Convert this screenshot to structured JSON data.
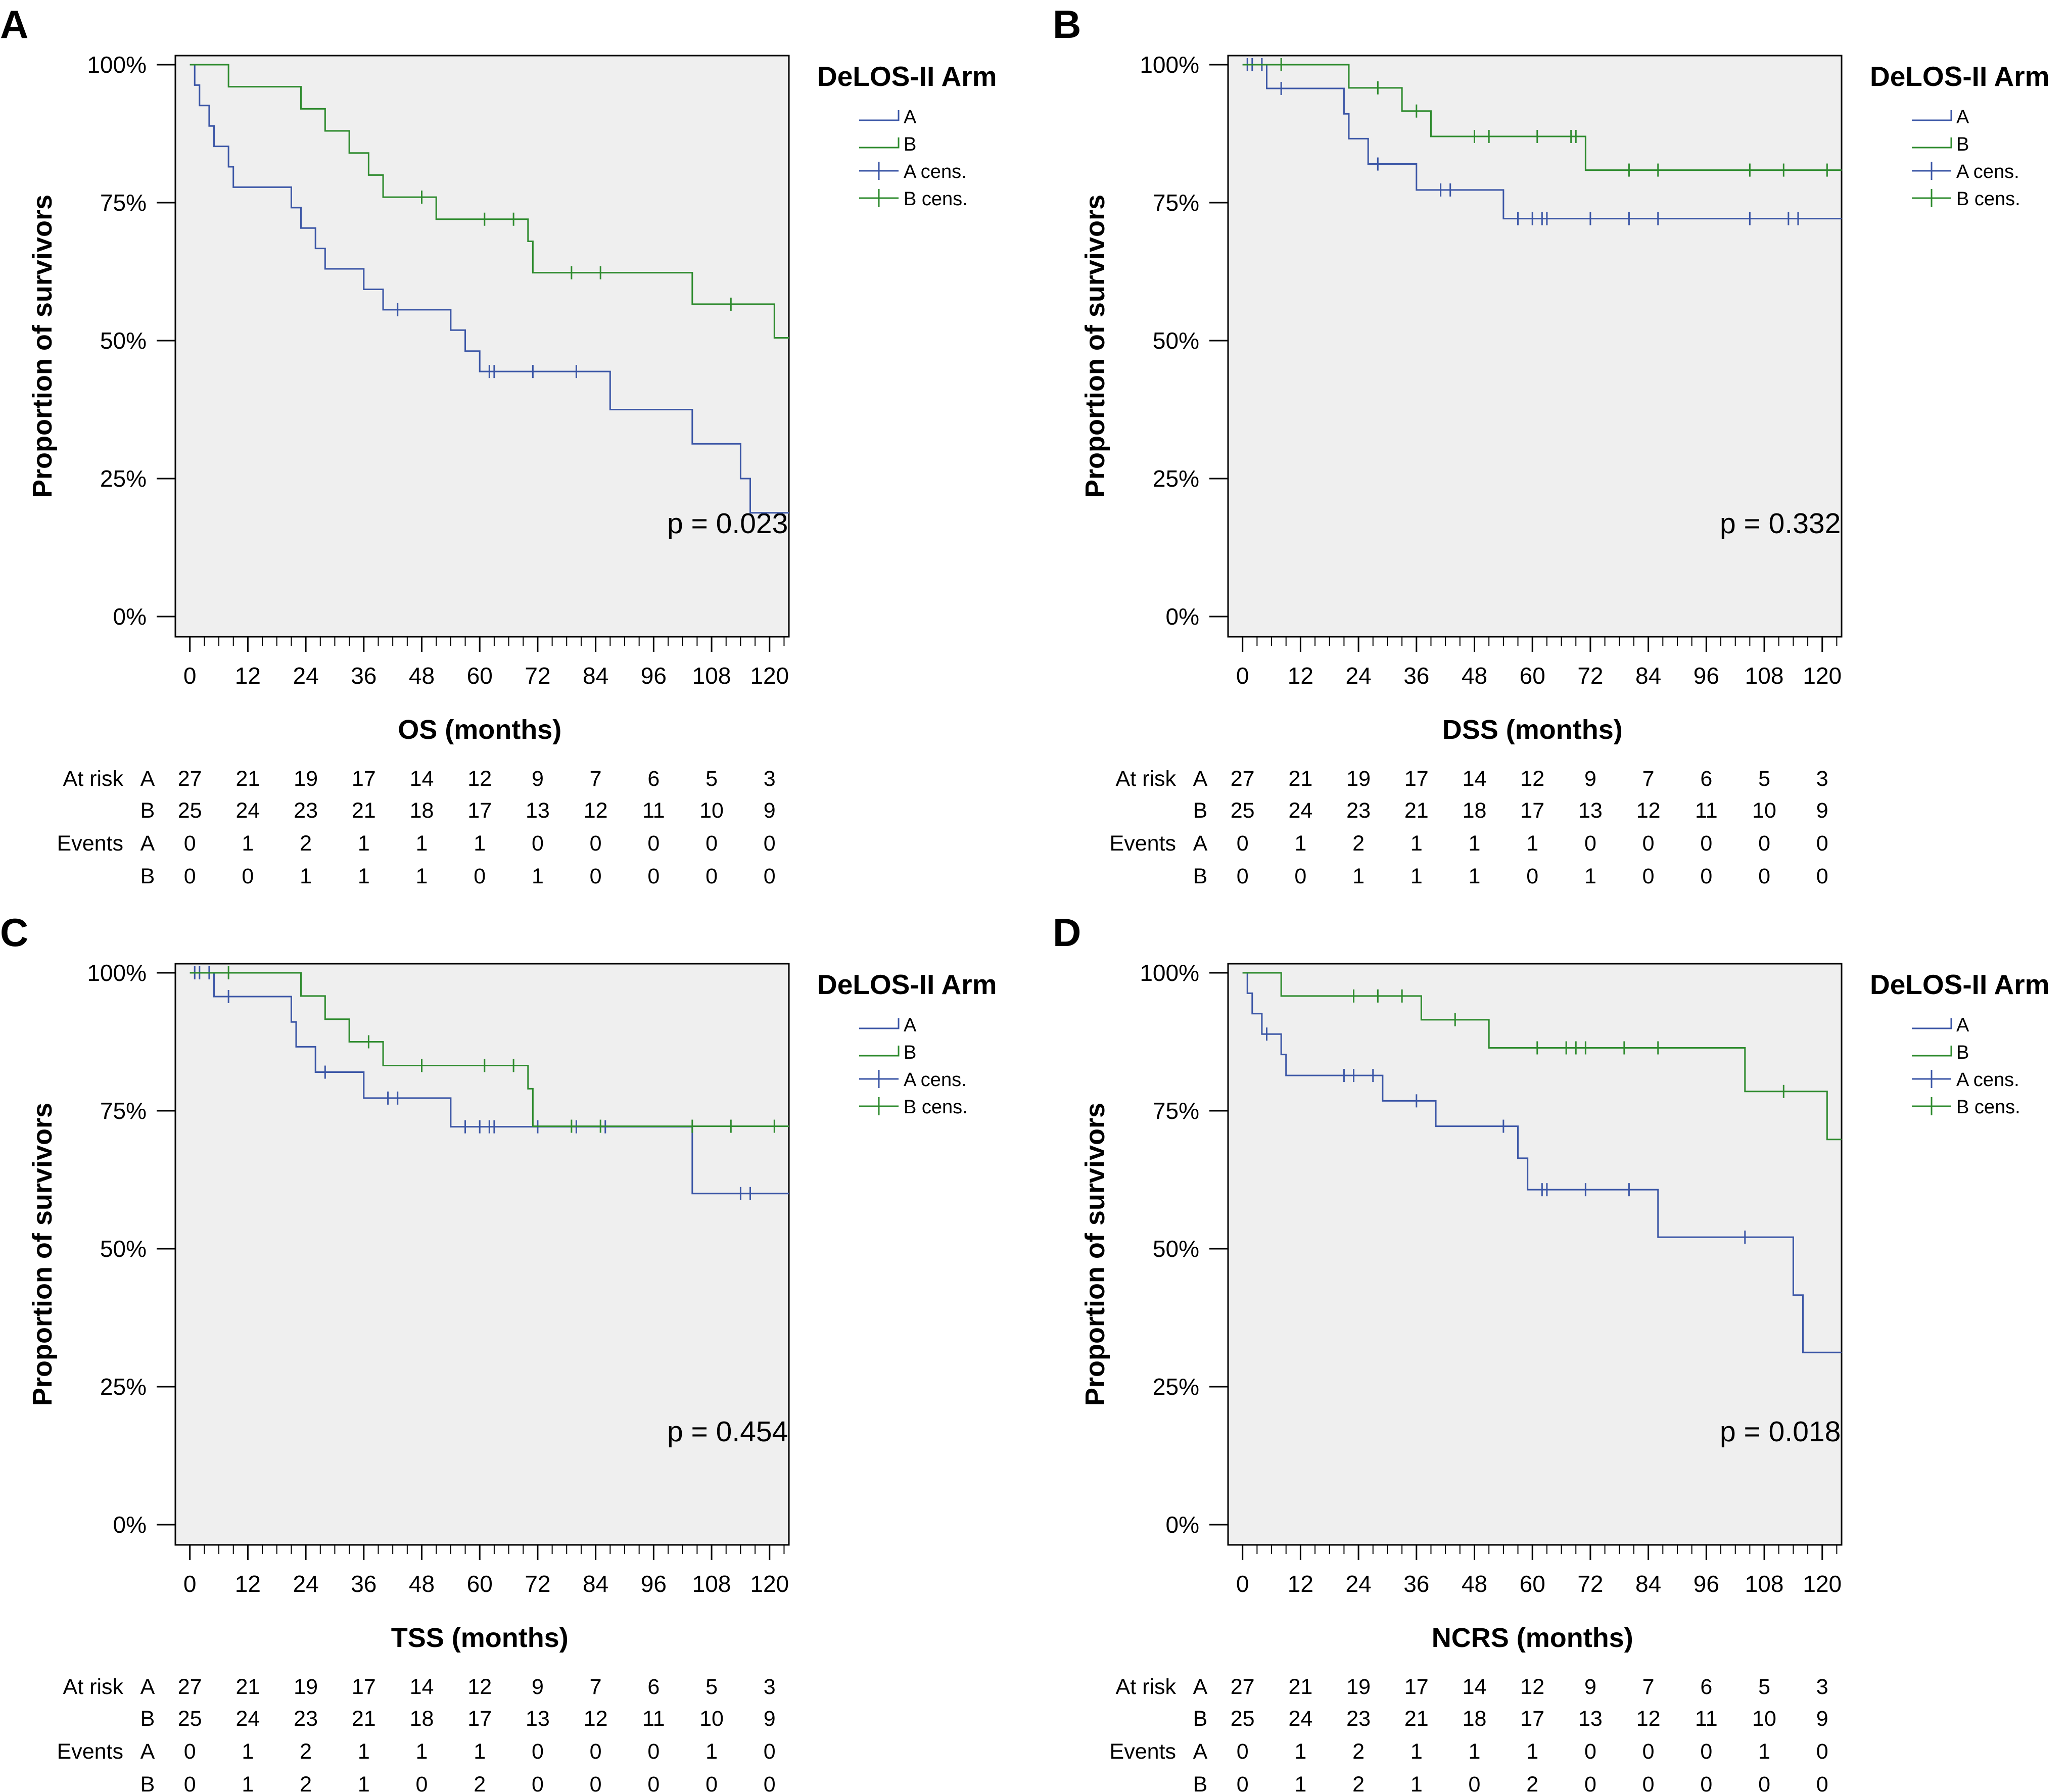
{
  "figure": {
    "legend_title": "DeLOS-II Arm",
    "legend_items": [
      "A",
      "B",
      "A cens.",
      "B cens."
    ],
    "ylabel": "Proportion of survivors",
    "y_ticks": [
      "0%",
      "25%",
      "50%",
      "75%",
      "100%"
    ],
    "x_ticks": [
      "0",
      "12",
      "24",
      "36",
      "48",
      "60",
      "72",
      "84",
      "96",
      "108",
      "120"
    ],
    "colors": {
      "A": "#3b56a6",
      "B": "#2e8b2e",
      "plot_bg": "#efefef"
    }
  },
  "chart_data": [
    {
      "panel": "A",
      "type": "line",
      "xlabel": "OS (months)",
      "ylabel": "Proportion of survivors",
      "xlim": [
        -3,
        124
      ],
      "ylim": [
        0,
        100
      ],
      "p_value": "p = 0.023",
      "series": [
        {
          "name": "A",
          "steps": [
            [
              0,
              100
            ],
            [
              1,
              96.3
            ],
            [
              2,
              92.6
            ],
            [
              4,
              88.9
            ],
            [
              5,
              85.2
            ],
            [
              8,
              81.5
            ],
            [
              9,
              77.8
            ],
            [
              21,
              74.1
            ],
            [
              23,
              70.4
            ],
            [
              26,
              66.7
            ],
            [
              28,
              63
            ],
            [
              36,
              59.3
            ],
            [
              40,
              55.6
            ],
            [
              54,
              51.9
            ],
            [
              57,
              48.1
            ],
            [
              60,
              44.4
            ],
            [
              87,
              37.5
            ],
            [
              104,
              31.3
            ],
            [
              114,
              25
            ],
            [
              116,
              18.8
            ],
            [
              124,
              18.8
            ]
          ],
          "censored": [
            [
              43,
              55.6
            ],
            [
              62,
              44.4
            ],
            [
              63,
              44.4
            ],
            [
              71,
              44.4
            ],
            [
              80,
              44.4
            ]
          ]
        },
        {
          "name": "B",
          "steps": [
            [
              0,
              100
            ],
            [
              8,
              96
            ],
            [
              23,
              92
            ],
            [
              28,
              88
            ],
            [
              33,
              84
            ],
            [
              37,
              80
            ],
            [
              40,
              76
            ],
            [
              51,
              72
            ],
            [
              70,
              68
            ],
            [
              71,
              62.3
            ],
            [
              104,
              56.6
            ],
            [
              121,
              50.5
            ],
            [
              124,
              50.5
            ]
          ],
          "censored": [
            [
              48,
              76
            ],
            [
              61,
              72
            ],
            [
              67,
              72
            ],
            [
              79,
              62.3
            ],
            [
              85,
              62.3
            ],
            [
              112,
              56.6
            ]
          ]
        }
      ],
      "risk_table": {
        "at_risk": {
          "A": [
            "27",
            "21",
            "19",
            "17",
            "14",
            "12",
            "9",
            "7",
            "6",
            "5",
            "3"
          ],
          "B": [
            "25",
            "24",
            "23",
            "21",
            "18",
            "17",
            "13",
            "12",
            "11",
            "10",
            "9"
          ]
        },
        "events": {
          "A": [
            "0",
            "1",
            "2",
            "1",
            "1",
            "1",
            "0",
            "0",
            "0",
            "0",
            "0"
          ],
          "B": [
            "0",
            "0",
            "1",
            "1",
            "1",
            "0",
            "1",
            "0",
            "0",
            "0",
            "0"
          ]
        }
      }
    },
    {
      "panel": "B",
      "type": "line",
      "xlabel": "DSS (months)",
      "ylabel": "Proportion of survivors",
      "xlim": [
        -3,
        124
      ],
      "ylim": [
        0,
        100
      ],
      "p_value": "p = 0.332",
      "series": [
        {
          "name": "A",
          "steps": [
            [
              0,
              100
            ],
            [
              5,
              95.7
            ],
            [
              21,
              91.1
            ],
            [
              22,
              86.6
            ],
            [
              26,
              82
            ],
            [
              36,
              77.3
            ],
            [
              54,
              72.1
            ],
            [
              124,
              72.1
            ]
          ],
          "censored": [
            [
              1,
              100
            ],
            [
              2,
              100
            ],
            [
              4,
              100
            ],
            [
              8,
              95.7
            ],
            [
              28,
              82
            ],
            [
              41,
              77.3
            ],
            [
              43,
              77.3
            ],
            [
              57,
              72.1
            ],
            [
              60,
              72.1
            ],
            [
              62,
              72.1
            ],
            [
              63,
              72.1
            ],
            [
              72,
              72.1
            ],
            [
              80,
              72.1
            ],
            [
              86,
              72.1
            ],
            [
              105,
              72.1
            ],
            [
              113,
              72.1
            ],
            [
              115,
              72.1
            ]
          ]
        },
        {
          "name": "B",
          "steps": [
            [
              0,
              100
            ],
            [
              22,
              95.8
            ],
            [
              33,
              91.6
            ],
            [
              39,
              87
            ],
            [
              71,
              80.9
            ],
            [
              124,
              80.9
            ]
          ],
          "censored": [
            [
              8,
              100
            ],
            [
              28,
              95.8
            ],
            [
              36,
              91.6
            ],
            [
              48,
              87
            ],
            [
              51,
              87
            ],
            [
              61,
              87
            ],
            [
              68,
              87
            ],
            [
              69,
              87
            ],
            [
              80,
              80.9
            ],
            [
              86,
              80.9
            ],
            [
              105,
              80.9
            ],
            [
              112,
              80.9
            ],
            [
              121,
              80.9
            ]
          ]
        }
      ],
      "risk_table": {
        "at_risk": {
          "A": [
            "27",
            "21",
            "19",
            "17",
            "14",
            "12",
            "9",
            "7",
            "6",
            "5",
            "3"
          ],
          "B": [
            "25",
            "24",
            "23",
            "21",
            "18",
            "17",
            "13",
            "12",
            "11",
            "10",
            "9"
          ]
        },
        "events": {
          "A": [
            "0",
            "1",
            "2",
            "1",
            "1",
            "1",
            "0",
            "0",
            "0",
            "0",
            "0"
          ],
          "B": [
            "0",
            "0",
            "1",
            "1",
            "1",
            "0",
            "1",
            "0",
            "0",
            "0",
            "0"
          ]
        }
      }
    },
    {
      "panel": "C",
      "type": "line",
      "xlabel": "TSS (months)",
      "ylabel": "Proportion of survivors",
      "xlim": [
        -3,
        124
      ],
      "ylim": [
        0,
        100
      ],
      "p_value": "p = 0.454",
      "series": [
        {
          "name": "A",
          "steps": [
            [
              0,
              100
            ],
            [
              5,
              95.7
            ],
            [
              21,
              91.1
            ],
            [
              22,
              86.6
            ],
            [
              26,
              82
            ],
            [
              36,
              77.3
            ],
            [
              54,
              72.1
            ],
            [
              104,
              60
            ],
            [
              124,
              60
            ]
          ],
          "censored": [
            [
              1,
              100
            ],
            [
              2,
              100
            ],
            [
              4,
              100
            ],
            [
              8,
              95.7
            ],
            [
              28,
              82
            ],
            [
              41,
              77.3
            ],
            [
              43,
              77.3
            ],
            [
              57,
              72.1
            ],
            [
              60,
              72.1
            ],
            [
              62,
              72.1
            ],
            [
              63,
              72.1
            ],
            [
              72,
              72.1
            ],
            [
              80,
              72.1
            ],
            [
              86,
              72.1
            ],
            [
              114,
              60
            ],
            [
              116,
              60
            ]
          ]
        },
        {
          "name": "B",
          "steps": [
            [
              0,
              100
            ],
            [
              23,
              95.8
            ],
            [
              28,
              91.6
            ],
            [
              33,
              87.5
            ],
            [
              40,
              83.2
            ],
            [
              70,
              79
            ],
            [
              71,
              72.2
            ],
            [
              124,
              72.2
            ]
          ],
          "censored": [
            [
              8,
              100
            ],
            [
              37,
              87.5
            ],
            [
              48,
              83.2
            ],
            [
              61,
              83.2
            ],
            [
              67,
              83.2
            ],
            [
              79,
              72.2
            ],
            [
              85,
              72.2
            ],
            [
              104,
              72.2
            ],
            [
              112,
              72.2
            ],
            [
              121,
              72.2
            ]
          ]
        }
      ],
      "risk_table": {
        "at_risk": {
          "A": [
            "27",
            "21",
            "19",
            "17",
            "14",
            "12",
            "9",
            "7",
            "6",
            "5",
            "3"
          ],
          "B": [
            "25",
            "24",
            "23",
            "21",
            "18",
            "17",
            "13",
            "12",
            "11",
            "10",
            "9"
          ]
        },
        "events": {
          "A": [
            "0",
            "1",
            "2",
            "1",
            "1",
            "1",
            "0",
            "0",
            "0",
            "1",
            "0"
          ],
          "B": [
            "0",
            "1",
            "2",
            "1",
            "0",
            "2",
            "0",
            "0",
            "0",
            "0",
            "0"
          ]
        }
      }
    },
    {
      "panel": "D",
      "type": "line",
      "xlabel": "NCRS (months)",
      "ylabel": "Proportion of survivors",
      "xlim": [
        -3,
        124
      ],
      "ylim": [
        0,
        100
      ],
      "p_value": "p = 0.018",
      "series": [
        {
          "name": "A",
          "steps": [
            [
              0,
              100
            ],
            [
              1,
              96.3
            ],
            [
              2,
              92.6
            ],
            [
              4,
              88.9
            ],
            [
              8,
              85.2
            ],
            [
              9,
              81.4
            ],
            [
              29,
              76.8
            ],
            [
              40,
              72.2
            ],
            [
              57,
              66.4
            ],
            [
              59,
              60.7
            ],
            [
              86,
              52.1
            ],
            [
              114,
              41.6
            ],
            [
              116,
              31.2
            ],
            [
              124,
              31.2
            ]
          ],
          "censored": [
            [
              5,
              88.9
            ],
            [
              21,
              81.4
            ],
            [
              23,
              81.4
            ],
            [
              27,
              81.4
            ],
            [
              36,
              76.8
            ],
            [
              54,
              72.2
            ],
            [
              62,
              60.7
            ],
            [
              63,
              60.7
            ],
            [
              71,
              60.7
            ],
            [
              80,
              60.7
            ],
            [
              104,
              52.1
            ]
          ]
        },
        {
          "name": "B",
          "steps": [
            [
              0,
              100
            ],
            [
              8,
              95.8
            ],
            [
              37,
              91.5
            ],
            [
              51,
              86.4
            ],
            [
              104,
              78.5
            ],
            [
              121,
              69.8
            ],
            [
              124,
              69.8
            ]
          ],
          "censored": [
            [
              23,
              95.8
            ],
            [
              28,
              95.8
            ],
            [
              33,
              95.8
            ],
            [
              44,
              91.5
            ],
            [
              61,
              86.4
            ],
            [
              67,
              86.4
            ],
            [
              69,
              86.4
            ],
            [
              71,
              86.4
            ],
            [
              79,
              86.4
            ],
            [
              86,
              86.4
            ],
            [
              112,
              78.5
            ]
          ]
        }
      ],
      "risk_table": {
        "at_risk": {
          "A": [
            "27",
            "21",
            "19",
            "17",
            "14",
            "12",
            "9",
            "7",
            "6",
            "5",
            "3"
          ],
          "B": [
            "25",
            "24",
            "23",
            "21",
            "18",
            "17",
            "13",
            "12",
            "11",
            "10",
            "9"
          ]
        },
        "events": {
          "A": [
            "0",
            "1",
            "2",
            "1",
            "1",
            "1",
            "0",
            "0",
            "0",
            "1",
            "0"
          ],
          "B": [
            "0",
            "1",
            "2",
            "1",
            "0",
            "2",
            "0",
            "0",
            "0",
            "0",
            "0"
          ]
        }
      }
    }
  ],
  "risk_labels": {
    "at_risk": "At risk",
    "events": "Events",
    "arm_a": "A",
    "arm_b": "B"
  }
}
